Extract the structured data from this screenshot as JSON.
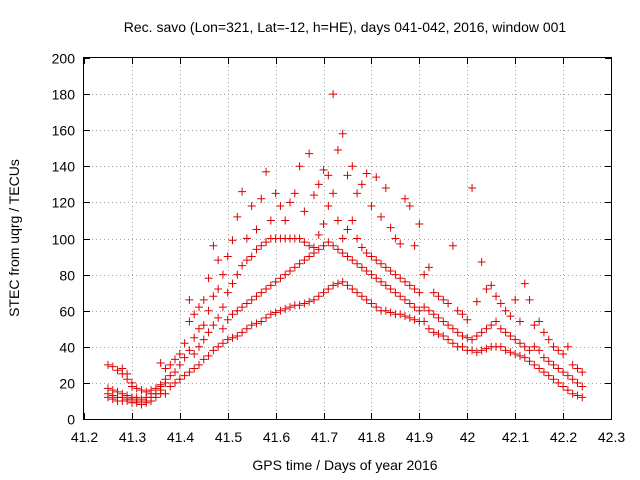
{
  "chart_data": {
    "type": "scatter",
    "title": "Rec. savo (Lon=321, Lat=-12, h=HE), days 041-042, 2016, window 001",
    "xlabel": "GPS time / Days of year 2016",
    "ylabel": "STEC from uqrg / TECUs",
    "xlim": [
      41.2,
      42.3
    ],
    "ylim": [
      0,
      200
    ],
    "xticks": [
      "41.2",
      "41.3",
      "41.4",
      "41.5",
      "41.6",
      "41.7",
      "41.8",
      "41.9",
      "42",
      "42.1",
      "42.2",
      "42.3"
    ],
    "yticks": [
      "0",
      "20",
      "40",
      "60",
      "80",
      "100",
      "120",
      "140",
      "160",
      "180",
      "200"
    ],
    "grid": true,
    "marker": "+",
    "color": "#e00000",
    "points": [
      [
        41.25,
        12
      ],
      [
        41.25,
        14
      ],
      [
        41.25,
        17
      ],
      [
        41.26,
        11
      ],
      [
        41.26,
        13
      ],
      [
        41.26,
        16
      ],
      [
        41.27,
        10
      ],
      [
        41.27,
        12
      ],
      [
        41.27,
        15
      ],
      [
        41.28,
        10
      ],
      [
        41.28,
        12
      ],
      [
        41.28,
        14
      ],
      [
        41.29,
        10
      ],
      [
        41.29,
        11
      ],
      [
        41.29,
        13
      ],
      [
        41.3,
        9
      ],
      [
        41.3,
        11
      ],
      [
        41.3,
        12
      ],
      [
        41.31,
        9
      ],
      [
        41.31,
        10
      ],
      [
        41.31,
        12
      ],
      [
        41.32,
        8
      ],
      [
        41.32,
        10
      ],
      [
        41.32,
        11
      ],
      [
        41.33,
        9
      ],
      [
        41.33,
        10
      ],
      [
        41.33,
        12
      ],
      [
        41.34,
        10
      ],
      [
        41.34,
        12
      ],
      [
        41.34,
        14
      ],
      [
        41.35,
        12
      ],
      [
        41.35,
        14
      ],
      [
        41.36,
        14
      ],
      [
        41.36,
        16
      ],
      [
        41.36,
        18
      ],
      [
        41.25,
        30
      ],
      [
        41.26,
        29
      ],
      [
        41.27,
        27
      ],
      [
        41.28,
        25
      ],
      [
        41.28,
        28
      ],
      [
        41.29,
        22
      ],
      [
        41.29,
        25
      ],
      [
        41.3,
        20
      ],
      [
        41.3,
        18
      ],
      [
        41.31,
        17
      ],
      [
        41.32,
        16
      ],
      [
        41.33,
        15
      ],
      [
        41.34,
        16
      ],
      [
        41.35,
        17
      ],
      [
        41.36,
        19
      ],
      [
        41.36,
        31
      ],
      [
        41.37,
        20
      ],
      [
        41.37,
        22
      ],
      [
        41.37,
        28
      ],
      [
        41.38,
        24
      ],
      [
        41.38,
        30
      ],
      [
        41.39,
        26
      ],
      [
        41.39,
        33
      ],
      [
        41.4,
        30
      ],
      [
        41.4,
        36
      ],
      [
        41.41,
        34
      ],
      [
        41.41,
        42
      ],
      [
        41.42,
        38
      ],
      [
        41.42,
        54
      ],
      [
        41.42,
        66
      ],
      [
        41.43,
        36
      ],
      [
        41.43,
        45
      ],
      [
        41.43,
        58
      ],
      [
        41.44,
        40
      ],
      [
        41.44,
        50
      ],
      [
        41.44,
        62
      ],
      [
        41.45,
        44
      ],
      [
        41.45,
        52
      ],
      [
        41.45,
        66
      ],
      [
        41.37,
        14
      ],
      [
        41.38,
        18
      ],
      [
        41.39,
        20
      ],
      [
        41.4,
        22
      ],
      [
        41.41,
        24
      ],
      [
        41.42,
        26
      ],
      [
        41.43,
        28
      ],
      [
        41.44,
        30
      ],
      [
        41.45,
        33
      ],
      [
        41.46,
        35
      ],
      [
        41.47,
        38
      ],
      [
        41.48,
        40
      ],
      [
        41.49,
        42
      ],
      [
        41.5,
        44
      ],
      [
        41.51,
        45
      ],
      [
        41.52,
        46
      ],
      [
        41.53,
        48
      ],
      [
        41.54,
        50
      ],
      [
        41.55,
        52
      ],
      [
        41.56,
        53
      ],
      [
        41.57,
        54
      ],
      [
        41.58,
        56
      ],
      [
        41.59,
        58
      ],
      [
        41.6,
        59
      ],
      [
        41.61,
        60
      ],
      [
        41.62,
        61
      ],
      [
        41.63,
        62
      ],
      [
        41.64,
        63
      ],
      [
        41.65,
        63
      ],
      [
        41.66,
        64
      ],
      [
        41.67,
        65
      ],
      [
        41.68,
        66
      ],
      [
        41.69,
        68
      ],
      [
        41.7,
        70
      ],
      [
        41.71,
        72
      ],
      [
        41.72,
        74
      ],
      [
        41.73,
        75
      ],
      [
        41.74,
        76
      ],
      [
        41.75,
        74
      ],
      [
        41.76,
        72
      ],
      [
        41.77,
        70
      ],
      [
        41.78,
        68
      ],
      [
        41.79,
        66
      ],
      [
        41.8,
        64
      ],
      [
        41.81,
        62
      ],
      [
        41.82,
        60
      ],
      [
        41.83,
        60
      ],
      [
        41.84,
        59
      ],
      [
        41.85,
        58
      ],
      [
        41.86,
        58
      ],
      [
        41.87,
        57
      ],
      [
        41.88,
        56
      ],
      [
        41.89,
        55
      ],
      [
        41.9,
        54
      ],
      [
        41.46,
        48
      ],
      [
        41.46,
        60
      ],
      [
        41.46,
        78
      ],
      [
        41.47,
        52
      ],
      [
        41.47,
        68
      ],
      [
        41.47,
        96
      ],
      [
        41.48,
        56
      ],
      [
        41.48,
        72
      ],
      [
        41.48,
        88
      ],
      [
        41.49,
        50
      ],
      [
        41.49,
        62
      ],
      [
        41.49,
        80
      ],
      [
        41.5,
        55
      ],
      [
        41.5,
        70
      ],
      [
        41.5,
        90
      ],
      [
        41.51,
        58
      ],
      [
        41.51,
        75
      ],
      [
        41.51,
        99
      ],
      [
        41.52,
        60
      ],
      [
        41.52,
        80
      ],
      [
        41.52,
        112
      ],
      [
        41.53,
        62
      ],
      [
        41.53,
        85
      ],
      [
        41.53,
        126
      ],
      [
        41.54,
        64
      ],
      [
        41.54,
        88
      ],
      [
        41.54,
        100
      ],
      [
        41.55,
        66
      ],
      [
        41.55,
        90
      ],
      [
        41.55,
        118
      ],
      [
        41.56,
        68
      ],
      [
        41.56,
        94
      ],
      [
        41.56,
        105
      ],
      [
        41.57,
        70
      ],
      [
        41.57,
        96
      ],
      [
        41.57,
        122
      ],
      [
        41.58,
        72
      ],
      [
        41.58,
        98
      ],
      [
        41.58,
        137
      ],
      [
        41.59,
        74
      ],
      [
        41.59,
        100
      ],
      [
        41.59,
        110
      ],
      [
        41.6,
        76
      ],
      [
        41.6,
        100
      ],
      [
        41.6,
        125
      ],
      [
        41.61,
        78
      ],
      [
        41.61,
        100
      ],
      [
        41.61,
        118
      ],
      [
        41.62,
        80
      ],
      [
        41.62,
        100
      ],
      [
        41.62,
        110
      ],
      [
        41.63,
        82
      ],
      [
        41.63,
        100
      ],
      [
        41.63,
        120
      ],
      [
        41.64,
        84
      ],
      [
        41.64,
        100
      ],
      [
        41.64,
        125
      ],
      [
        41.65,
        86
      ],
      [
        41.65,
        100
      ],
      [
        41.65,
        140
      ],
      [
        41.66,
        88
      ],
      [
        41.66,
        98
      ],
      [
        41.66,
        115
      ],
      [
        41.67,
        90
      ],
      [
        41.67,
        96
      ],
      [
        41.67,
        147
      ],
      [
        41.68,
        92
      ],
      [
        41.68,
        95
      ],
      [
        41.68,
        124
      ],
      [
        41.69,
        94
      ],
      [
        41.69,
        102
      ],
      [
        41.69,
        130
      ],
      [
        41.7,
        96
      ],
      [
        41.7,
        108
      ],
      [
        41.7,
        138
      ],
      [
        41.71,
        98
      ],
      [
        41.71,
        118
      ],
      [
        41.71,
        135
      ],
      [
        41.72,
        96
      ],
      [
        41.72,
        125
      ],
      [
        41.72,
        180
      ],
      [
        41.73,
        94
      ],
      [
        41.73,
        110
      ],
      [
        41.73,
        149
      ],
      [
        41.74,
        92
      ],
      [
        41.74,
        100
      ],
      [
        41.74,
        158
      ],
      [
        41.75,
        90
      ],
      [
        41.75,
        105
      ],
      [
        41.75,
        135
      ],
      [
        41.76,
        88
      ],
      [
        41.76,
        110
      ],
      [
        41.76,
        140
      ],
      [
        41.77,
        86
      ],
      [
        41.77,
        100
      ],
      [
        41.77,
        125
      ],
      [
        41.78,
        84
      ],
      [
        41.78,
        95
      ],
      [
        41.78,
        130
      ],
      [
        41.79,
        82
      ],
      [
        41.79,
        92
      ],
      [
        41.79,
        136
      ],
      [
        41.8,
        80
      ],
      [
        41.8,
        90
      ],
      [
        41.8,
        118
      ],
      [
        41.81,
        78
      ],
      [
        41.81,
        88
      ],
      [
        41.81,
        134
      ],
      [
        41.82,
        76
      ],
      [
        41.82,
        86
      ],
      [
        41.82,
        112
      ],
      [
        41.83,
        74
      ],
      [
        41.83,
        84
      ],
      [
        41.83,
        128
      ],
      [
        41.84,
        72
      ],
      [
        41.84,
        82
      ],
      [
        41.84,
        106
      ],
      [
        41.85,
        70
      ],
      [
        41.85,
        80
      ],
      [
        41.85,
        100
      ],
      [
        41.86,
        68
      ],
      [
        41.86,
        78
      ],
      [
        41.86,
        97
      ],
      [
        41.87,
        66
      ],
      [
        41.87,
        76
      ],
      [
        41.87,
        122
      ],
      [
        41.88,
        64
      ],
      [
        41.88,
        74
      ],
      [
        41.88,
        118
      ],
      [
        41.89,
        62
      ],
      [
        41.89,
        72
      ],
      [
        41.89,
        96
      ],
      [
        41.9,
        60
      ],
      [
        41.9,
        70
      ],
      [
        41.9,
        108
      ],
      [
        41.91,
        54
      ],
      [
        41.91,
        62
      ],
      [
        41.91,
        80
      ],
      [
        41.92,
        50
      ],
      [
        41.92,
        60
      ],
      [
        41.92,
        84
      ],
      [
        41.93,
        48
      ],
      [
        41.93,
        58
      ],
      [
        41.93,
        70
      ],
      [
        41.94,
        47
      ],
      [
        41.94,
        56
      ],
      [
        41.94,
        68
      ],
      [
        41.95,
        46
      ],
      [
        41.95,
        54
      ],
      [
        41.95,
        66
      ],
      [
        41.96,
        44
      ],
      [
        41.96,
        52
      ],
      [
        41.96,
        64
      ],
      [
        41.97,
        42
      ],
      [
        41.97,
        50
      ],
      [
        41.97,
        96
      ],
      [
        41.98,
        40
      ],
      [
        41.98,
        48
      ],
      [
        41.98,
        60
      ],
      [
        41.99,
        40
      ],
      [
        41.99,
        46
      ],
      [
        41.99,
        58
      ],
      [
        42.0,
        38
      ],
      [
        42.0,
        45
      ],
      [
        42.0,
        55
      ],
      [
        42.01,
        38
      ],
      [
        42.01,
        44
      ],
      [
        42.01,
        128
      ],
      [
        42.02,
        37
      ],
      [
        42.02,
        46
      ],
      [
        42.02,
        65
      ],
      [
        42.03,
        38
      ],
      [
        42.03,
        48
      ],
      [
        42.03,
        87
      ],
      [
        42.04,
        39
      ],
      [
        42.04,
        50
      ],
      [
        42.04,
        72
      ],
      [
        42.05,
        40
      ],
      [
        42.05,
        52
      ],
      [
        42.05,
        74
      ],
      [
        42.06,
        40
      ],
      [
        42.06,
        54
      ],
      [
        42.06,
        68
      ],
      [
        42.07,
        40
      ],
      [
        42.07,
        50
      ],
      [
        42.07,
        64
      ],
      [
        42.08,
        38
      ],
      [
        42.08,
        48
      ],
      [
        42.08,
        60
      ],
      [
        42.09,
        37
      ],
      [
        42.09,
        46
      ],
      [
        42.09,
        57
      ],
      [
        42.1,
        36
      ],
      [
        42.1,
        44
      ],
      [
        42.1,
        66
      ],
      [
        42.11,
        35
      ],
      [
        42.11,
        42
      ],
      [
        42.11,
        54
      ],
      [
        42.12,
        34
      ],
      [
        42.12,
        40
      ],
      [
        42.12,
        75
      ],
      [
        42.13,
        32
      ],
      [
        42.13,
        38
      ],
      [
        42.13,
        66
      ],
      [
        42.14,
        30
      ],
      [
        42.14,
        40
      ],
      [
        42.14,
        52
      ],
      [
        42.15,
        28
      ],
      [
        42.15,
        38
      ],
      [
        42.15,
        54
      ],
      [
        42.16,
        26
      ],
      [
        42.16,
        34
      ],
      [
        42.16,
        48
      ],
      [
        42.17,
        24
      ],
      [
        42.17,
        32
      ],
      [
        42.17,
        44
      ],
      [
        42.18,
        22
      ],
      [
        42.18,
        30
      ],
      [
        42.18,
        40
      ],
      [
        42.19,
        20
      ],
      [
        42.19,
        28
      ],
      [
        42.19,
        38
      ],
      [
        42.2,
        18
      ],
      [
        42.2,
        26
      ],
      [
        42.2,
        36
      ],
      [
        42.21,
        16
      ],
      [
        42.21,
        24
      ],
      [
        42.21,
        40
      ],
      [
        42.22,
        14
      ],
      [
        42.22,
        22
      ],
      [
        42.22,
        30
      ],
      [
        42.23,
        13
      ],
      [
        42.23,
        20
      ],
      [
        42.23,
        28
      ],
      [
        42.24,
        12
      ],
      [
        42.24,
        18
      ],
      [
        42.24,
        26
      ]
    ]
  }
}
